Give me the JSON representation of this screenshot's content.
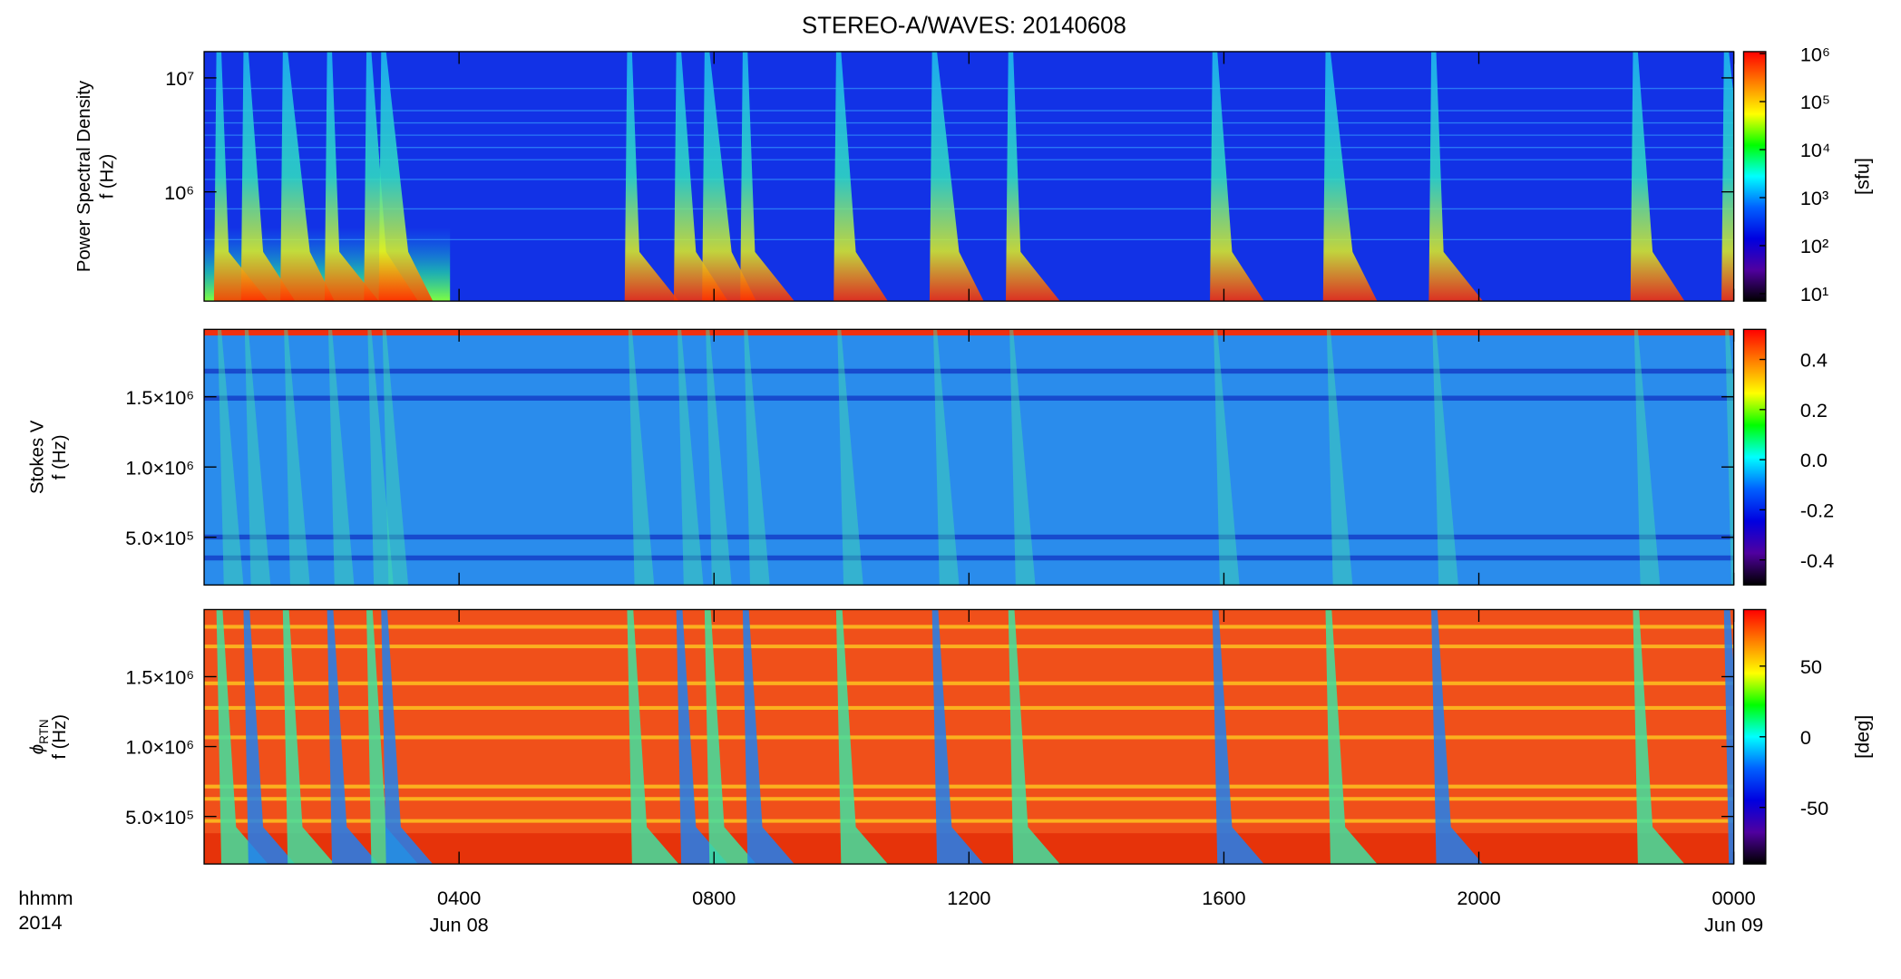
{
  "chart_data": [
    {
      "type": "spectrogram",
      "title": "STEREO-A/WAVES: 20140608",
      "y_label": [
        "Power Spectral Density",
        "f (Hz)"
      ],
      "log_y": true,
      "ylim": [
        110000,
        17000000
      ],
      "yticks": [
        {
          "value": 1000000,
          "label": "10⁶"
        },
        {
          "value": 10000000,
          "label": "10⁷"
        }
      ],
      "xlim": [
        0,
        24
      ],
      "xticks": [
        4,
        8,
        12,
        16,
        20,
        24
      ],
      "colorbar": {
        "label": "[sfu]",
        "log": true,
        "lim": [
          7,
          1100000
        ],
        "ticks": [
          {
            "value": 10,
            "label": "10¹"
          },
          {
            "value": 100,
            "label": "10²"
          },
          {
            "value": 1000,
            "label": "10³"
          },
          {
            "value": 10000,
            "label": "10⁴"
          },
          {
            "value": 100000,
            "label": "10⁵"
          },
          {
            "value": 1000000,
            "label": "10⁶"
          }
        ],
        "colors": [
          "#ff0000",
          "#ff8000",
          "#ffff00",
          "#00ff00",
          "#00ffff",
          "#0060ff",
          "#0000e0",
          "#5000a0",
          "#000000"
        ]
      }
    },
    {
      "type": "spectrogram",
      "y_label": [
        "Stokes V",
        "f (Hz)"
      ],
      "log_y": false,
      "ylim": [
        160000,
        1980000
      ],
      "yticks": [
        {
          "value": 500000,
          "label": "5.0×10⁵"
        },
        {
          "value": 1000000,
          "label": "1.0×10⁶"
        },
        {
          "value": 1500000,
          "label": "1.5×10⁶"
        }
      ],
      "xlim": [
        0,
        24
      ],
      "xticks": [
        4,
        8,
        12,
        16,
        20,
        24
      ],
      "colorbar": {
        "log": false,
        "lim": [
          -0.5,
          0.52
        ],
        "ticks": [
          -0.4,
          -0.2,
          {
            "value": 0,
            "label": "0.0"
          },
          0.2,
          0.4
        ],
        "colors": [
          "#ff0000",
          "#ff8000",
          "#ffff00",
          "#00ff00",
          "#00ffff",
          "#0060ff",
          "#0000e0",
          "#5000a0",
          "#000000"
        ]
      }
    },
    {
      "type": "spectrogram",
      "y_label": [
        {
          "symbol": "ϕ",
          "subscript": "RTN"
        },
        "f (Hz)"
      ],
      "log_y": false,
      "ylim": [
        160000,
        1980000
      ],
      "yticks": [
        {
          "value": 500000,
          "label": "5.0×10⁵"
        },
        {
          "value": 1000000,
          "label": "1.0×10⁶"
        },
        {
          "value": 1500000,
          "label": "1.5×10⁶"
        }
      ],
      "xlim": [
        0,
        24
      ],
      "xticks": [
        {
          "value": 4,
          "label": "0400"
        },
        {
          "value": 8,
          "label": "0800"
        },
        {
          "value": 12,
          "label": "1200"
        },
        {
          "value": 16,
          "label": "1600"
        },
        {
          "value": 20,
          "label": "2000"
        },
        {
          "value": 24,
          "label": "0000"
        }
      ],
      "x_dates": [
        {
          "value": 4,
          "label": "Jun 08"
        },
        {
          "value": 24,
          "label": "Jun 09"
        }
      ],
      "x_label": [
        "hhmm",
        "2014"
      ],
      "colorbar": {
        "label": "[deg]",
        "log": false,
        "lim": [
          -90,
          90
        ],
        "ticks": [
          -50,
          0,
          50
        ],
        "colors": [
          "#ff0000",
          "#ff8000",
          "#ffff00",
          "#00ff00",
          "#00ffff",
          "#0060ff",
          "#0000e0",
          "#5000a0",
          "#000000"
        ]
      }
    }
  ]
}
